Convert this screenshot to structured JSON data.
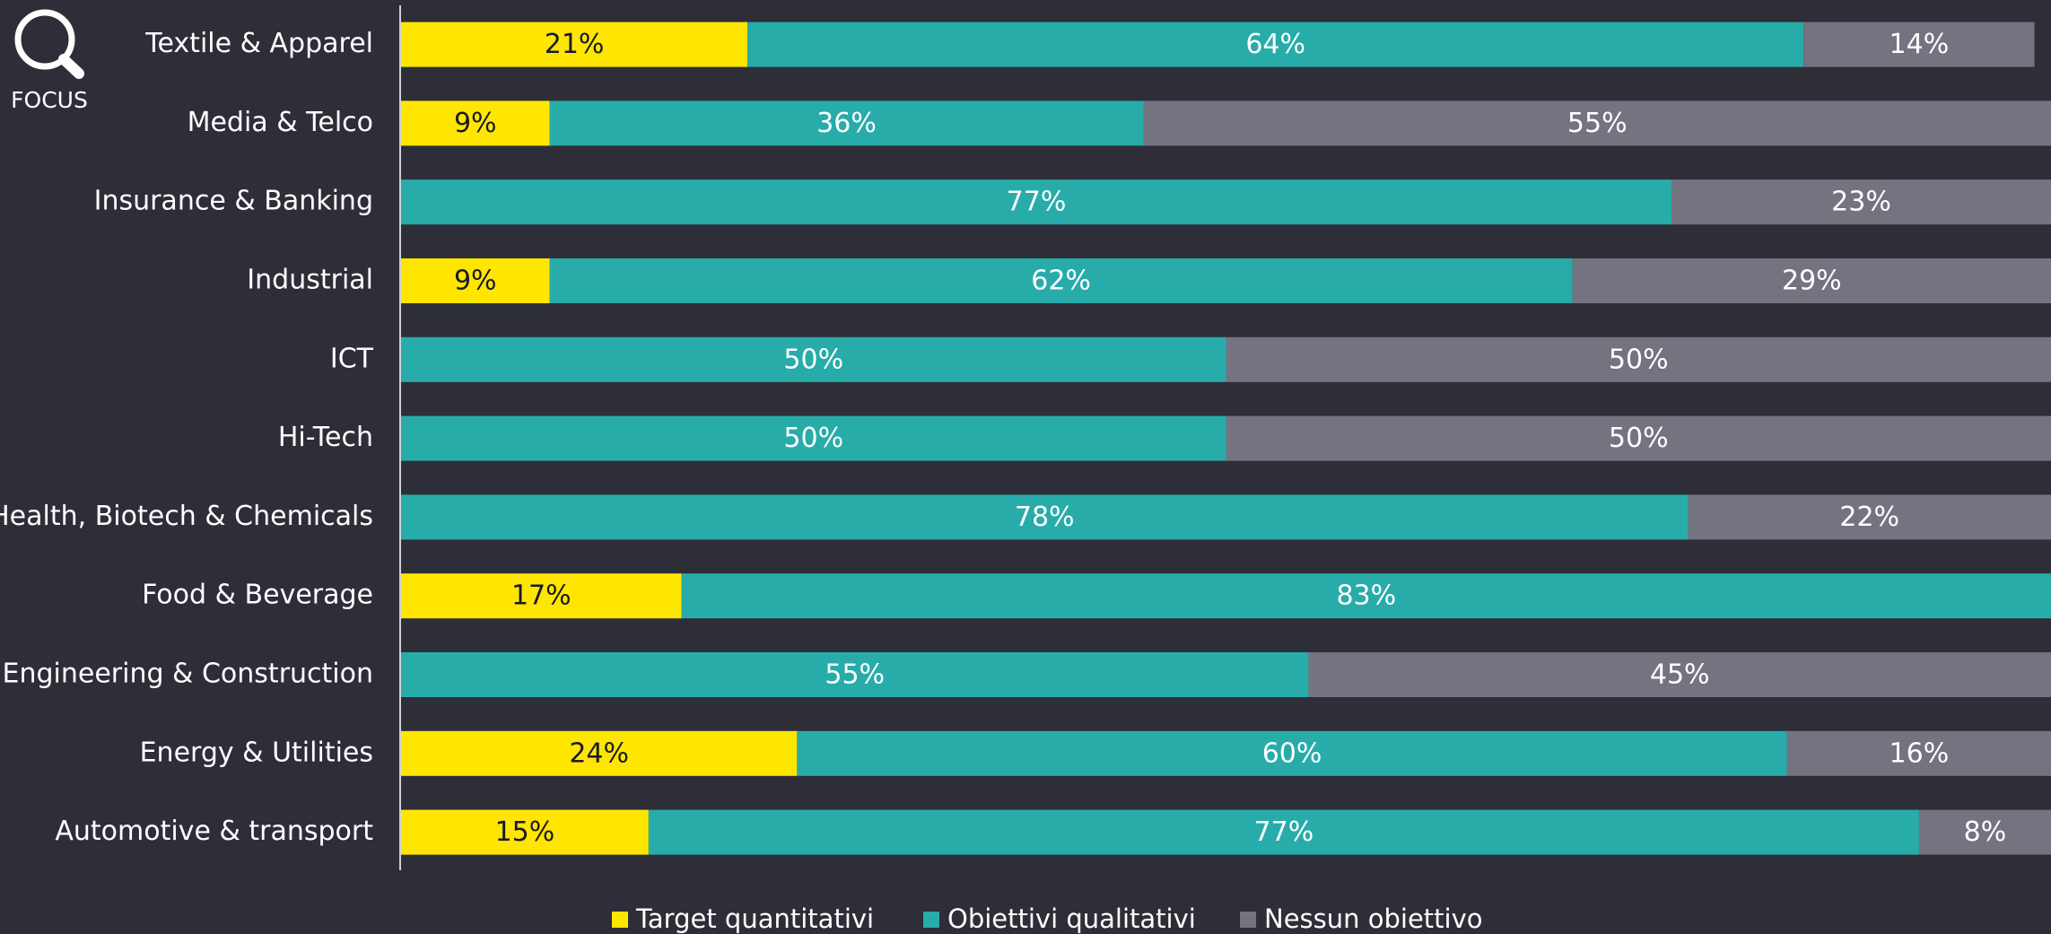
{
  "focus_label": "FOCUS",
  "chart_data": {
    "type": "stacked_bar_horizontal",
    "categories": [
      "Textile & Apparel",
      "Media & Telco",
      "Insurance & Banking",
      "Industrial",
      "ICT",
      "Hi-Tech",
      "Health, Biotech & Chemicals",
      "Food & Beverage",
      "Engineering & Construction",
      "Energy & Utilities",
      "Automotive & transport"
    ],
    "xlim": [
      0,
      100
    ],
    "series": [
      {
        "name": "Target quantitativi",
        "color": "#ffe600",
        "values": [
          21,
          9,
          null,
          9,
          null,
          null,
          null,
          17,
          null,
          24,
          15
        ],
        "value_labels": [
          "21%",
          "9%",
          null,
          "9%",
          null,
          null,
          null,
          "17%",
          null,
          "24%",
          "15%"
        ]
      },
      {
        "name": "Obiettivi qualitativi",
        "color": "#27acaa",
        "values": [
          64,
          36,
          77,
          62,
          50,
          50,
          78,
          83,
          55,
          60,
          77
        ],
        "value_labels": [
          "64%",
          "36%",
          "77%",
          "62%",
          "50%",
          "50%",
          "78%",
          "83%",
          "55%",
          "60%",
          "77%"
        ]
      },
      {
        "name": "Nessun obiettivo",
        "color": "#747480",
        "values": [
          14,
          55,
          23,
          29,
          50,
          50,
          22,
          null,
          45,
          16,
          8
        ],
        "value_labels": [
          "14%",
          "55%",
          "23%",
          "29%",
          "50%",
          "50%",
          "22%",
          null,
          "45%",
          "16%",
          "8%"
        ]
      }
    ],
    "legend": "bottom"
  }
}
